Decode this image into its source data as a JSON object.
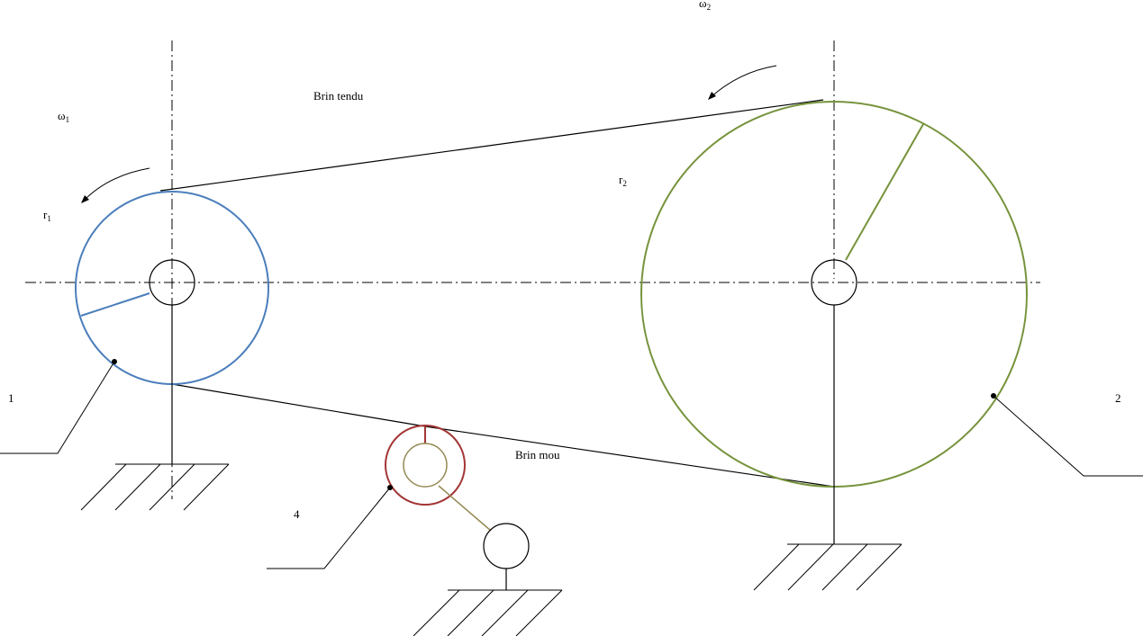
{
  "labels": {
    "omega1": "ω",
    "omega1_sub": "1",
    "omega2": "ω",
    "omega2_sub": "2",
    "r1": "r",
    "r1_sub": "1",
    "r2": "r",
    "r2_sub": "2",
    "brin_tendu": "Brin tendu",
    "brin_mou": "Brin mou",
    "part1": "1",
    "part2": "2",
    "part4": "4"
  },
  "colors": {
    "pulley1": "#4a7ebb",
    "pulley2": "#77933c",
    "tensioner_outer": "#a33535",
    "tensioner_inner": "#948a54",
    "line": "#000000"
  }
}
